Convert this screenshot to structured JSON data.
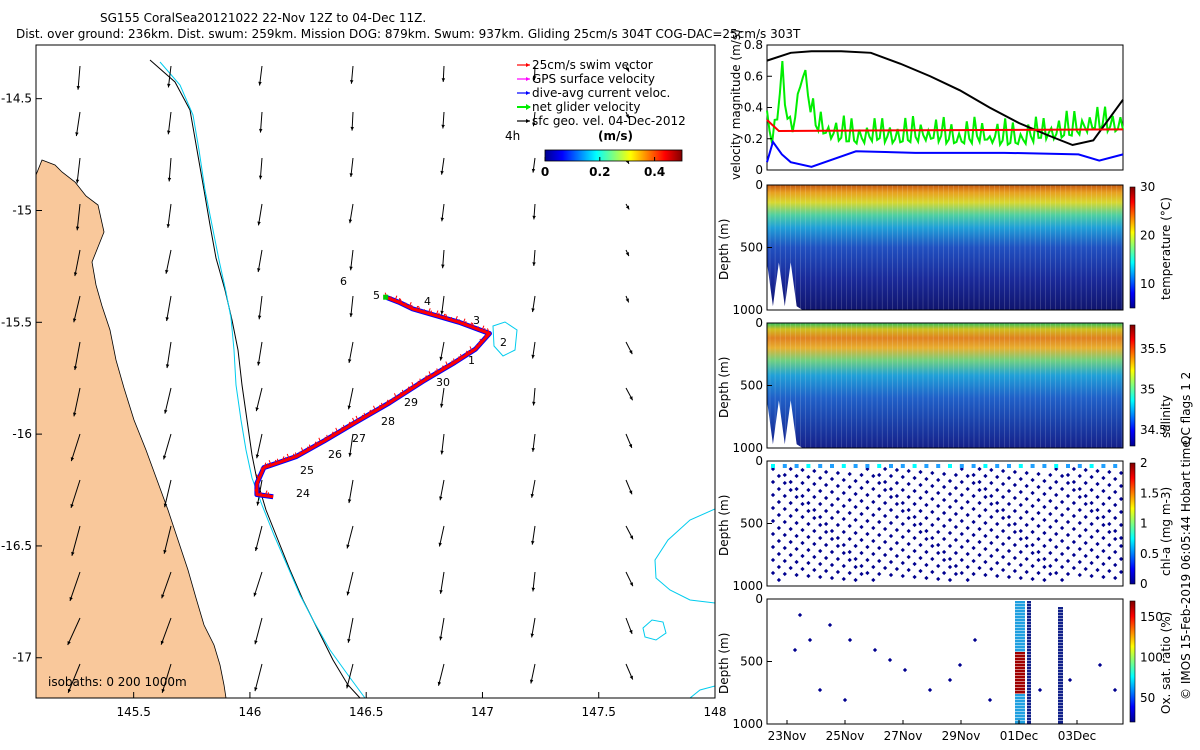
{
  "header": {
    "line1": "SG155 CoralSea20121022 22-Nov 12Z to 04-Dec 11Z.",
    "line2": "Dist. over ground: 236km. Dist. swum: 259km. Mission DOG: 879km. Swum: 937km. Gliding 25cm/s 304T COG-DAC=25cm/s 303T"
  },
  "colors": {
    "land": "#f9c89b",
    "isobath_0": "#000000",
    "isobath_200": "#00ccee",
    "swim_vector": "#ff0000",
    "gps_velocity": "#ff00ff",
    "dac": "#0000ff",
    "net_velocity": "#00ee00",
    "geo_vel": "#000000"
  },
  "chart_data": [
    {
      "type": "map",
      "xticks": [
        "145.5",
        "146",
        "146.5",
        "147",
        "147.5",
        "148"
      ],
      "yticks": [
        "-14.5",
        "-15",
        "-15.5",
        "-16",
        "-16.5",
        "-17"
      ],
      "xlim": [
        145.08,
        148.0
      ],
      "ylim": [
        -17.18,
        -14.26
      ],
      "legend": [
        {
          "label": "25cm/s swim vector",
          "color": "#ff0000"
        },
        {
          "label": "GPS surface velocity",
          "color": "#ff00ff"
        },
        {
          "label": "dive-avg current veloc.",
          "color": "#0000ff"
        },
        {
          "label": "net glider velocity",
          "color": "#00ee00"
        },
        {
          "label": "sfc geo. vel. 04-Dec-2012",
          "color": "#000000"
        }
      ],
      "colorbar": {
        "label": "(m/s)",
        "ticks": [
          "0",
          "0.2",
          "0.4"
        ],
        "range": [
          0,
          0.5
        ],
        "side_label": "4h"
      },
      "isobath_label": "isobaths: 0   200  1000m",
      "track_labels": [
        "6",
        "5",
        "4",
        "3",
        "2",
        "1",
        "30",
        "29",
        "28",
        "27",
        "26",
        "25",
        "24"
      ],
      "track": {
        "lon": [
          146.59,
          146.64,
          146.7,
          146.8,
          146.9,
          147.03,
          146.97,
          146.88,
          146.75,
          146.6,
          146.45,
          146.32,
          146.2,
          146.06,
          146.03,
          146.03,
          146.1
        ],
        "lat": [
          -15.39,
          -15.41,
          -15.44,
          -15.47,
          -15.5,
          -15.55,
          -15.62,
          -15.68,
          -15.76,
          -15.86,
          -15.95,
          -16.03,
          -16.1,
          -16.15,
          -16.22,
          -16.27,
          -16.28
        ]
      }
    },
    {
      "type": "line",
      "ylabel": "velocity magnitude (m/s)",
      "yticks": [
        "0",
        "0.2",
        "0.4",
        "0.6",
        "0.8"
      ],
      "ylim": [
        0,
        0.8
      ],
      "xlim": [
        0,
        12
      ],
      "series": [
        {
          "color": "#000000",
          "x": [
            0,
            0.8,
            1.5,
            2.5,
            3.5,
            4.5,
            5.5,
            6.5,
            7.5,
            8.5,
            9.5,
            10.3,
            11,
            12
          ],
          "values": [
            0.7,
            0.75,
            0.76,
            0.76,
            0.75,
            0.68,
            0.6,
            0.51,
            0.4,
            0.3,
            0.22,
            0.16,
            0.19,
            0.45
          ]
        },
        {
          "color": "#ff0000",
          "x": [
            0,
            0.4,
            12
          ],
          "values": [
            0.32,
            0.25,
            0.26
          ]
        },
        {
          "color": "#0000ff",
          "x": [
            0,
            0.2,
            0.5,
            0.8,
            1.5,
            3,
            5,
            8,
            10.5,
            11.2,
            12
          ],
          "values": [
            0.05,
            0.18,
            0.1,
            0.05,
            0.02,
            0.12,
            0.11,
            0.11,
            0.1,
            0.06,
            0.1
          ]
        },
        {
          "color": "#00ee00",
          "x": [
            0,
            0.2,
            0.5,
            0.8,
            1.2,
            1.6,
            2,
            3,
            4,
            5,
            6,
            7,
            8,
            9,
            10,
            11,
            12
          ],
          "values": [
            0.38,
            0.15,
            0.6,
            0.22,
            0.65,
            0.3,
            0.25,
            0.22,
            0.22,
            0.23,
            0.22,
            0.22,
            0.21,
            0.22,
            0.26,
            0.29,
            0.3
          ]
        }
      ]
    },
    {
      "type": "heatmap",
      "ylabel": "Depth (m)",
      "clabel": "temperature (°C)",
      "yticks": [
        "0",
        "500",
        "1000"
      ],
      "cticks": [
        "10",
        "20",
        "30"
      ],
      "crange": [
        5,
        30
      ]
    },
    {
      "type": "heatmap",
      "ylabel": "Depth (m)",
      "clabel": "salinity",
      "yticks": [
        "0",
        "500",
        "1000"
      ],
      "cticks": [
        "34.5",
        "35",
        "35.5"
      ],
      "crange": [
        34.3,
        35.8
      ]
    },
    {
      "type": "heatmap",
      "ylabel": "Depth (m)",
      "clabel": "chl-a (mg m-3)",
      "yticks": [
        "0",
        "500",
        "1000"
      ],
      "cticks": [
        "0",
        "0.5",
        "1",
        "1.5",
        "2"
      ],
      "crange": [
        0,
        2
      ],
      "right_text": "QC flags 1  2"
    },
    {
      "type": "heatmap",
      "ylabel": "Depth (m)",
      "clabel": "Ox. sat. ratio (%)",
      "yticks": [
        "0",
        "500",
        "1000"
      ],
      "cticks": [
        "50",
        "100",
        "150"
      ],
      "crange": [
        20,
        170
      ],
      "xticks": [
        "23Nov",
        "25Nov",
        "27Nov",
        "29Nov",
        "01Dec",
        "03Dec"
      ],
      "right_text": "© IMOS 15-Feb-2019 06:05:44 Hobart time."
    }
  ]
}
